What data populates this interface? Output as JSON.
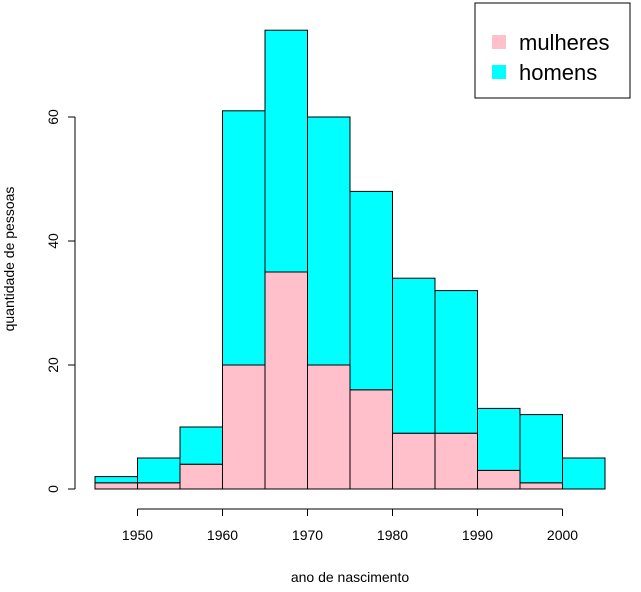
{
  "chart_data": {
    "type": "bar",
    "stacked": true,
    "bin_width": 5,
    "x_bins": [
      1945,
      1950,
      1955,
      1960,
      1965,
      1970,
      1975,
      1980,
      1985,
      1990,
      1995,
      2000
    ],
    "series": [
      {
        "name": "mulheres",
        "color": "#ffc0cb",
        "values": [
          1,
          1,
          4,
          20,
          35,
          20,
          16,
          9,
          9,
          3,
          1,
          0
        ]
      },
      {
        "name": "homens",
        "color": "#00ffff",
        "values": [
          1,
          4,
          6,
          41,
          39,
          40,
          32,
          25,
          23,
          10,
          11,
          5
        ]
      }
    ],
    "totals": [
      2,
      5,
      10,
      61,
      74,
      60,
      48,
      34,
      32,
      13,
      12,
      5
    ],
    "xlabel": "ano de nascimento",
    "ylabel": "quantidade de pessoas",
    "xticks": [
      1950,
      1960,
      1970,
      1980,
      1990,
      2000
    ],
    "yticks": [
      0,
      20,
      40,
      60
    ],
    "xlim": [
      1945,
      2005
    ],
    "ylim": [
      0,
      74
    ],
    "grid": false,
    "legend_position": "top-right"
  }
}
